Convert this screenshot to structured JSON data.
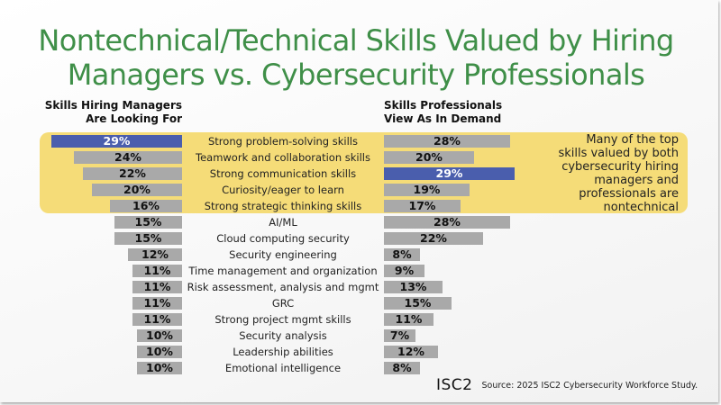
{
  "title": "Nontechnical/Technical Skills Valued by Hiring Managers vs. Cybersecurity Professionals",
  "title_lines": [
    "Nontechnical/Technical Skills Valued by Hiring",
    "Managers vs. Cybersecurity Professionals"
  ],
  "columns": {
    "left": [
      "Skills Hiring Managers",
      "Are Looking For"
    ],
    "right": [
      "Skills Professionals",
      "View As In Demand"
    ]
  },
  "callout": [
    "Many of the top",
    "skills valued by both",
    "cybersecurity hiring",
    "managers and",
    "professionals are",
    "nontechnical"
  ],
  "colors": {
    "title": "#3f8f48",
    "highlight_band": "#f5dc78",
    "bar": "#a9a9a9",
    "bar_highlight": "#4a5ead"
  },
  "rows": [
    {
      "skill": "Strong problem-solving skills",
      "managers": 29,
      "managers_label": "29%",
      "professionals": 28,
      "professionals_label": "28%",
      "hl_left": true,
      "hl_right": false
    },
    {
      "skill": "Teamwork and collaboration skills",
      "managers": 24,
      "managers_label": "24%",
      "professionals": 20,
      "professionals_label": "20%",
      "hl_left": false,
      "hl_right": false
    },
    {
      "skill": "Strong communication skills",
      "managers": 22,
      "managers_label": "22%",
      "professionals": 29,
      "professionals_label": "29%",
      "hl_left": false,
      "hl_right": true
    },
    {
      "skill": "Curiosity/eager to learn",
      "managers": 20,
      "managers_label": "20%",
      "professionals": 19,
      "professionals_label": "19%",
      "hl_left": false,
      "hl_right": false
    },
    {
      "skill": "Strong strategic thinking skills",
      "managers": 16,
      "managers_label": "16%",
      "professionals": 17,
      "professionals_label": "17%",
      "hl_left": false,
      "hl_right": false
    },
    {
      "skill": "AI/ML",
      "managers": 15,
      "managers_label": "15%",
      "professionals": 28,
      "professionals_label": "28%",
      "hl_left": false,
      "hl_right": false
    },
    {
      "skill": "Cloud computing security",
      "managers": 15,
      "managers_label": "15%",
      "professionals": 22,
      "professionals_label": "22%",
      "hl_left": false,
      "hl_right": false
    },
    {
      "skill": "Security engineering",
      "managers": 12,
      "managers_label": "12%",
      "professionals": 8,
      "professionals_label": "8%",
      "hl_left": false,
      "hl_right": false
    },
    {
      "skill": "Time management and organization",
      "managers": 11,
      "managers_label": "11%",
      "professionals": 9,
      "professionals_label": "9%",
      "hl_left": false,
      "hl_right": false
    },
    {
      "skill": "Risk assessment, analysis and mgmt",
      "managers": 11,
      "managers_label": "11%",
      "professionals": 13,
      "professionals_label": "13%",
      "hl_left": false,
      "hl_right": false
    },
    {
      "skill": "GRC",
      "managers": 11,
      "managers_label": "11%",
      "professionals": 15,
      "professionals_label": "15%",
      "hl_left": false,
      "hl_right": false
    },
    {
      "skill": "Strong project mgmt skills",
      "managers": 11,
      "managers_label": "11%",
      "professionals": 11,
      "professionals_label": "11%",
      "hl_left": false,
      "hl_right": false
    },
    {
      "skill": "Security analysis",
      "managers": 10,
      "managers_label": "10%",
      "professionals": 7,
      "professionals_label": "7%",
      "hl_left": false,
      "hl_right": false
    },
    {
      "skill": "Leadership abilities",
      "managers": 10,
      "managers_label": "10%",
      "professionals": 12,
      "professionals_label": "12%",
      "hl_left": false,
      "hl_right": false
    },
    {
      "skill": "Emotional intelligence",
      "managers": 10,
      "managers_label": "10%",
      "professionals": 8,
      "professionals_label": "8%",
      "hl_left": false,
      "hl_right": false
    }
  ],
  "footer": {
    "logo": "ISC2",
    "source": "Source: 2025 ISC2 Cybersecurity Workforce Study."
  },
  "chart_data": {
    "type": "bar",
    "orientation": "horizontal-butterfly",
    "title": "Nontechnical/Technical Skills Valued by Hiring Managers vs. Cybersecurity Professionals",
    "categories": [
      "Strong problem-solving skills",
      "Teamwork and collaboration skills",
      "Strong communication skills",
      "Curiosity/eager to learn",
      "Strong strategic thinking skills",
      "AI/ML",
      "Cloud computing security",
      "Security engineering",
      "Time management and organization",
      "Risk assessment, analysis and mgmt",
      "GRC",
      "Strong project mgmt skills",
      "Security analysis",
      "Leadership abilities",
      "Emotional intelligence"
    ],
    "series": [
      {
        "name": "Skills Hiring Managers Are Looking For",
        "values": [
          29,
          24,
          22,
          20,
          16,
          15,
          15,
          12,
          11,
          11,
          11,
          11,
          10,
          10,
          10
        ],
        "unit": "%"
      },
      {
        "name": "Skills Professionals View As In Demand",
        "values": [
          28,
          20,
          29,
          19,
          17,
          28,
          22,
          8,
          9,
          13,
          15,
          11,
          7,
          12,
          8
        ],
        "unit": "%"
      }
    ],
    "highlighted": [
      {
        "series": "Skills Hiring Managers Are Looking For",
        "category": "Strong problem-solving skills",
        "value": 29
      },
      {
        "series": "Skills Professionals View As In Demand",
        "category": "Strong communication skills",
        "value": 29
      }
    ],
    "annotations": [
      "Many of the top skills valued by both cybersecurity hiring managers and professionals are nontechnical"
    ],
    "highlight_band_categories": [
      "Strong problem-solving skills",
      "Teamwork and collaboration skills",
      "Strong communication skills",
      "Curiosity/eager to learn",
      "Strong strategic thinking skills"
    ],
    "xlabel": "",
    "ylabel": "",
    "grid": false,
    "source": "Source: 2025 ISC2 Cybersecurity Workforce Study."
  }
}
